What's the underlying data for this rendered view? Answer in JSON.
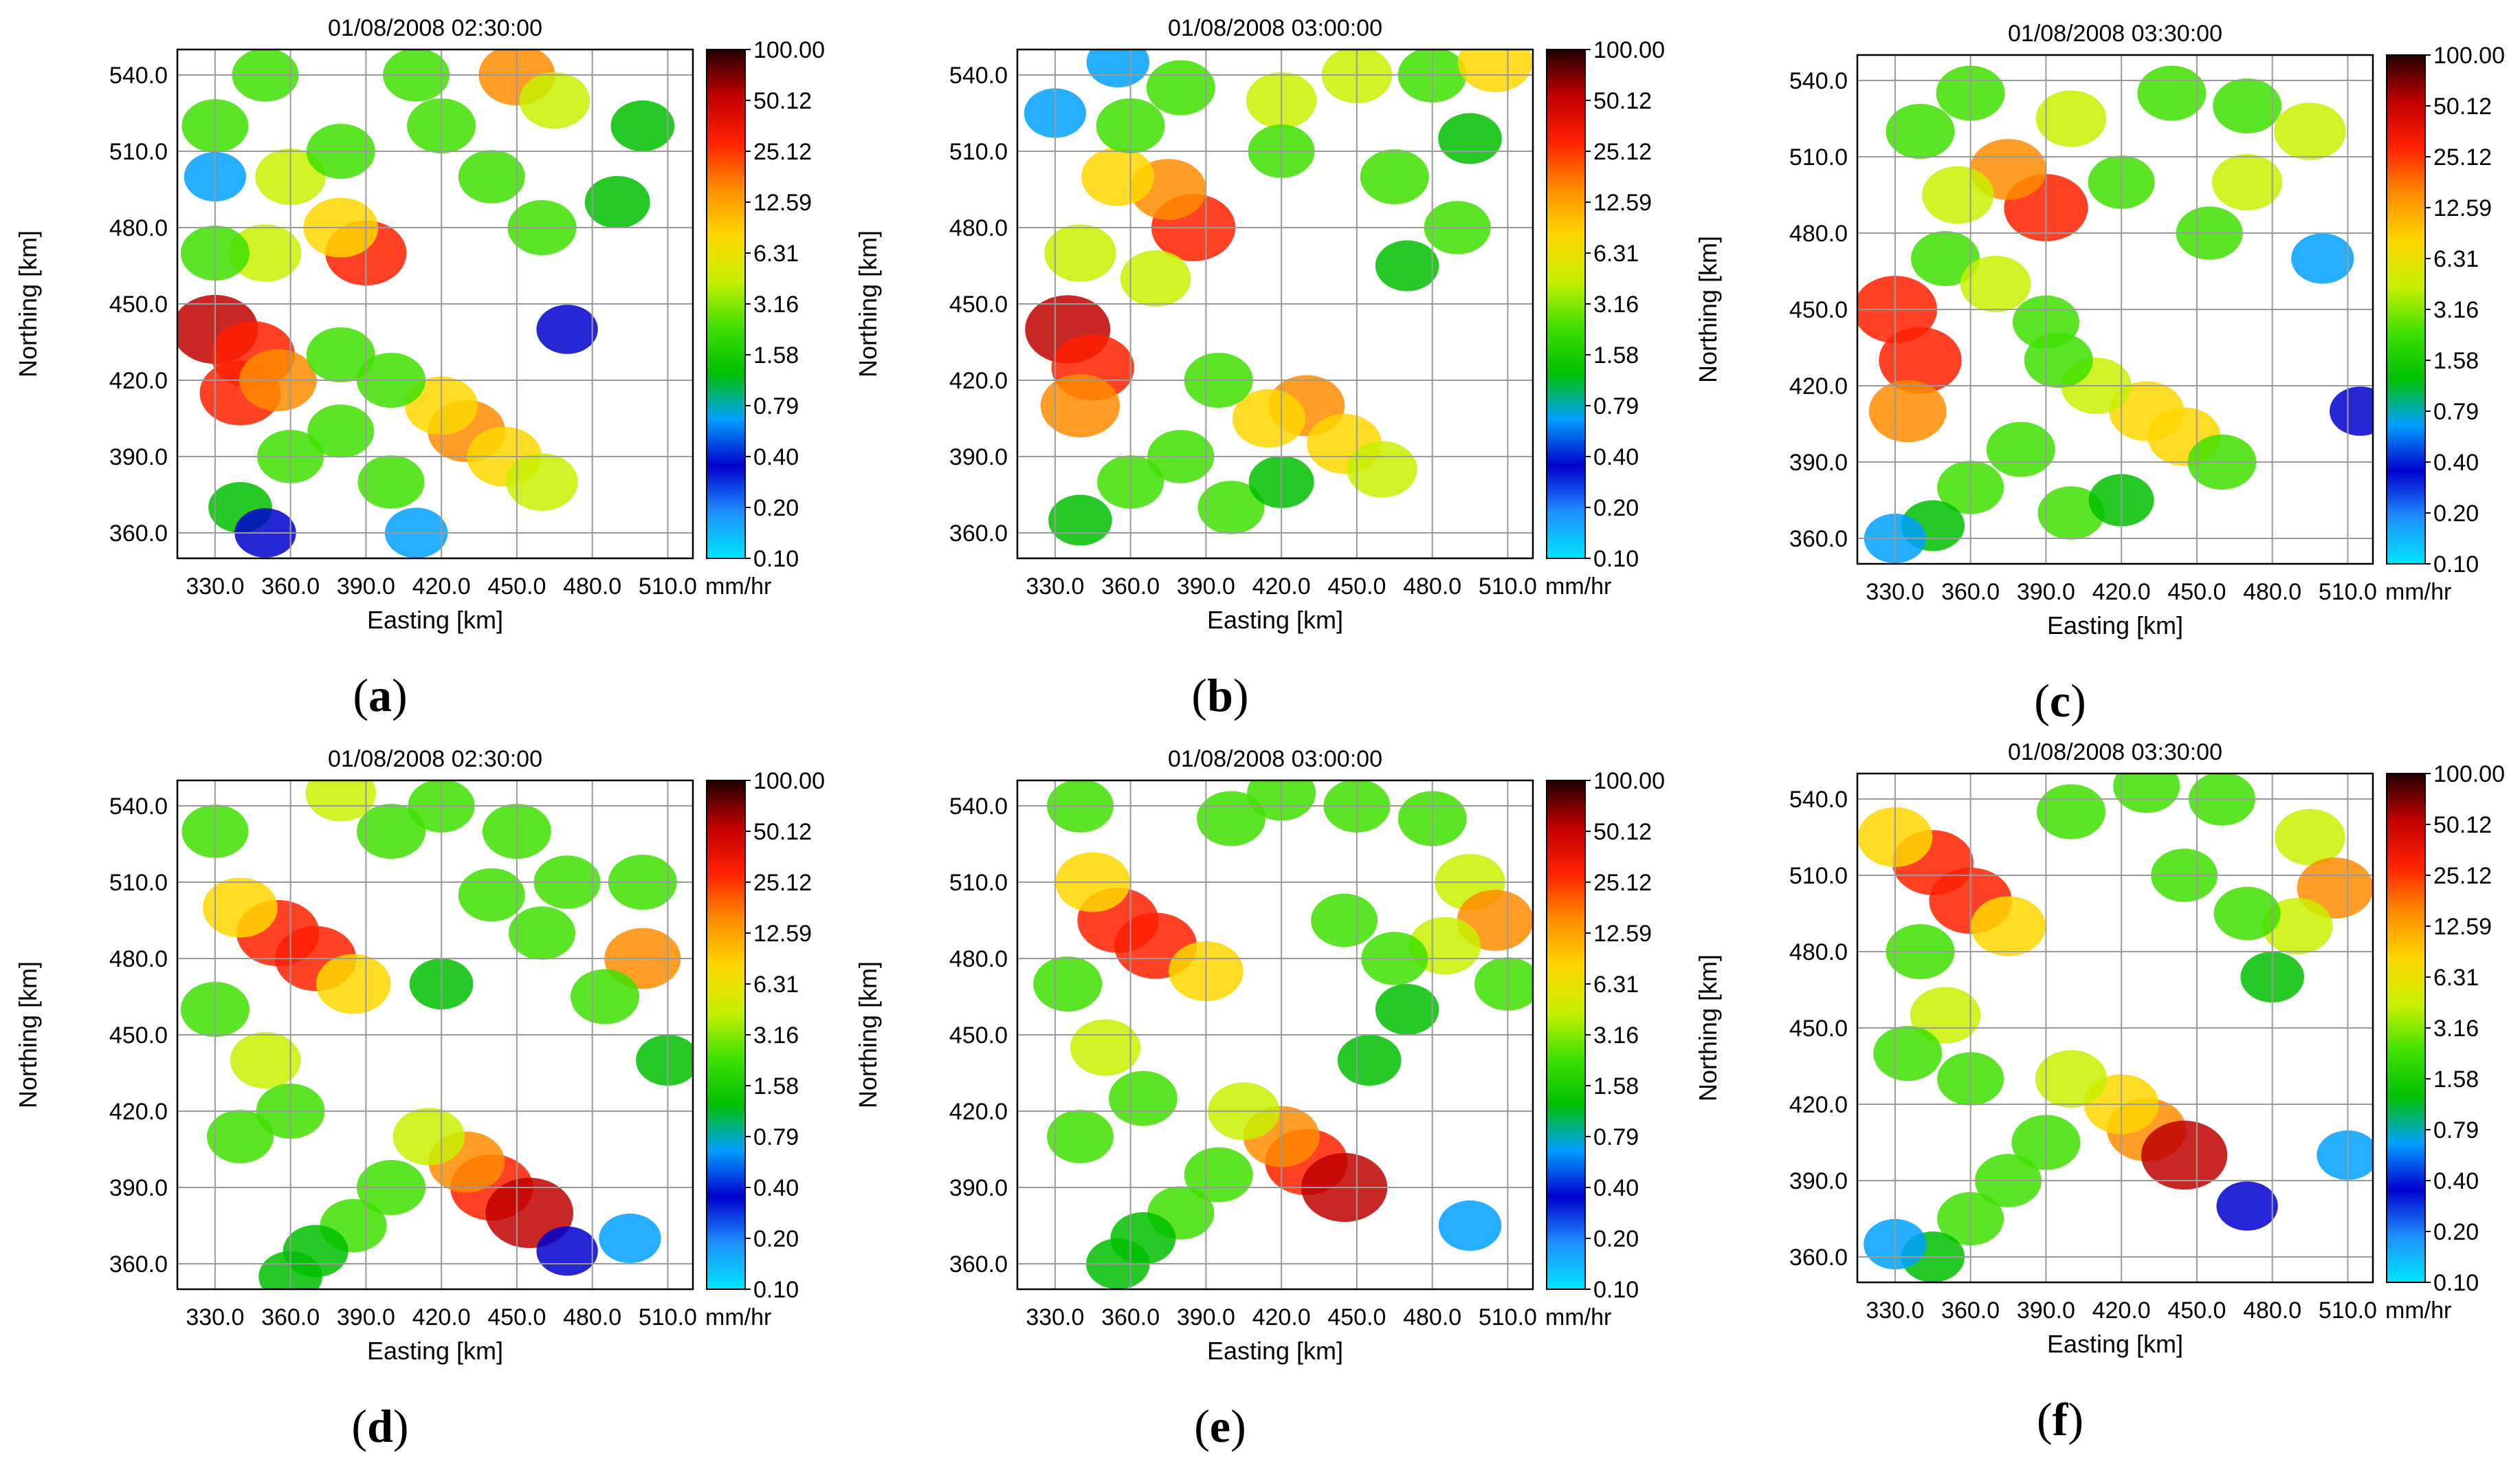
{
  "colorbar": {
    "ticks": [
      "100.00",
      "50.12",
      "25.12",
      "12.59",
      "6.31",
      "3.16",
      "1.58",
      "0.79",
      "0.40",
      "0.20",
      "0.10"
    ],
    "unit": "mm/hr",
    "colors": [
      "#00e5ff",
      "#1e90ff",
      "#0000cd",
      "#00a0ff",
      "#00c000",
      "#40e000",
      "#c8f000",
      "#ffd700",
      "#ff8c00",
      "#ff2000",
      "#c00000",
      "#200000"
    ]
  },
  "chart_data": [
    {
      "type": "heatmap",
      "panel": "(a)",
      "title": "01/08/2008 02:30:00",
      "xlabel": "Easting [km]",
      "ylabel": "Northing [km]",
      "xticks": [
        "330.0",
        "360.0",
        "390.0",
        "420.0",
        "450.0",
        "480.0",
        "510.0"
      ],
      "yticks": [
        "540.0",
        "510.0",
        "480.0",
        "450.0",
        "420.0",
        "390.0",
        "360.0"
      ],
      "xlim": [
        315,
        520
      ],
      "ylim": [
        350,
        550
      ],
      "value_range": [
        0.1,
        100
      ],
      "grid": true,
      "cells": [
        [
          330,
          440,
          40
        ],
        [
          345,
          430,
          30
        ],
        [
          340,
          415,
          20
        ],
        [
          355,
          420,
          12
        ],
        [
          390,
          470,
          20
        ],
        [
          380,
          480,
          8
        ],
        [
          350,
          470,
          5
        ],
        [
          330,
          470,
          3
        ],
        [
          360,
          500,
          4
        ],
        [
          380,
          510,
          3
        ],
        [
          420,
          520,
          3
        ],
        [
          450,
          540,
          10
        ],
        [
          465,
          530,
          4
        ],
        [
          410,
          540,
          2
        ],
        [
          350,
          540,
          2
        ],
        [
          330,
          520,
          2
        ],
        [
          440,
          500,
          2
        ],
        [
          460,
          480,
          3
        ],
        [
          490,
          490,
          1.5
        ],
        [
          430,
          400,
          12
        ],
        [
          445,
          390,
          8
        ],
        [
          460,
          380,
          5
        ],
        [
          420,
          410,
          6
        ],
        [
          400,
          420,
          3
        ],
        [
          380,
          400,
          2
        ],
        [
          360,
          390,
          2
        ],
        [
          340,
          370,
          1
        ],
        [
          400,
          380,
          2
        ],
        [
          380,
          430,
          3
        ],
        [
          410,
          360,
          0.8
        ],
        [
          470,
          440,
          0.5
        ],
        [
          500,
          520,
          1
        ],
        [
          330,
          500,
          0.6
        ],
        [
          350,
          360,
          0.5
        ]
      ]
    },
    {
      "type": "heatmap",
      "panel": "(b)",
      "title": "01/08/2008 03:00:00",
      "xlabel": "Easting [km]",
      "ylabel": "Northing [km]",
      "xticks": [
        "330.0",
        "360.0",
        "390.0",
        "420.0",
        "450.0",
        "480.0",
        "510.0"
      ],
      "yticks": [
        "540.0",
        "510.0",
        "480.0",
        "450.0",
        "420.0",
        "390.0",
        "360.0"
      ],
      "xlim": [
        315,
        520
      ],
      "ylim": [
        350,
        550
      ],
      "value_range": [
        0.1,
        100
      ],
      "grid": true,
      "cells": [
        [
          335,
          440,
          35
        ],
        [
          345,
          425,
          25
        ],
        [
          340,
          410,
          15
        ],
        [
          385,
          480,
          30
        ],
        [
          375,
          495,
          10
        ],
        [
          355,
          500,
          6
        ],
        [
          340,
          470,
          5
        ],
        [
          370,
          460,
          4
        ],
        [
          360,
          520,
          3
        ],
        [
          380,
          535,
          3
        ],
        [
          420,
          530,
          4
        ],
        [
          450,
          540,
          4
        ],
        [
          480,
          540,
          3
        ],
        [
          505,
          545,
          8
        ],
        [
          465,
          500,
          3
        ],
        [
          490,
          480,
          2
        ],
        [
          420,
          510,
          2
        ],
        [
          430,
          410,
          10
        ],
        [
          445,
          395,
          8
        ],
        [
          460,
          385,
          4
        ],
        [
          415,
          405,
          6
        ],
        [
          395,
          420,
          3
        ],
        [
          380,
          390,
          2
        ],
        [
          360,
          380,
          2
        ],
        [
          340,
          365,
          1
        ],
        [
          400,
          370,
          2
        ],
        [
          420,
          380,
          1.5
        ],
        [
          470,
          465,
          1
        ],
        [
          495,
          515,
          1
        ],
        [
          330,
          525,
          0.6
        ],
        [
          355,
          545,
          0.8
        ]
      ]
    },
    {
      "type": "heatmap",
      "panel": "(c)",
      "title": "01/08/2008 03:30:00",
      "xlabel": "Easting [km]",
      "ylabel": "Northing [km]",
      "xticks": [
        "330.0",
        "360.0",
        "390.0",
        "420.0",
        "450.0",
        "480.0",
        "510.0"
      ],
      "yticks": [
        "540.0",
        "510.0",
        "480.0",
        "450.0",
        "420.0",
        "390.0",
        "360.0"
      ],
      "xlim": [
        315,
        520
      ],
      "ylim": [
        350,
        550
      ],
      "value_range": [
        0.1,
        100
      ],
      "grid": true,
      "cells": [
        [
          330,
          450,
          30
        ],
        [
          340,
          430,
          25
        ],
        [
          335,
          410,
          12
        ],
        [
          390,
          490,
          30
        ],
        [
          375,
          505,
          10
        ],
        [
          355,
          495,
          5
        ],
        [
          350,
          470,
          3
        ],
        [
          370,
          460,
          4
        ],
        [
          340,
          520,
          3
        ],
        [
          360,
          535,
          3
        ],
        [
          400,
          525,
          4
        ],
        [
          440,
          535,
          3
        ],
        [
          470,
          530,
          3
        ],
        [
          495,
          520,
          5
        ],
        [
          470,
          500,
          4
        ],
        [
          455,
          480,
          2
        ],
        [
          420,
          500,
          2
        ],
        [
          430,
          410,
          8
        ],
        [
          445,
          400,
          6
        ],
        [
          460,
          390,
          3
        ],
        [
          410,
          420,
          4
        ],
        [
          395,
          430,
          3
        ],
        [
          380,
          395,
          3
        ],
        [
          360,
          380,
          2
        ],
        [
          345,
          365,
          1
        ],
        [
          400,
          370,
          2
        ],
        [
          420,
          375,
          1.5
        ],
        [
          390,
          445,
          2
        ],
        [
          500,
          470,
          0.8
        ],
        [
          515,
          410,
          0.5
        ],
        [
          330,
          360,
          0.6
        ]
      ]
    },
    {
      "type": "heatmap",
      "panel": "(d)",
      "title": "01/08/2008 02:30:00",
      "xlabel": "Easting [km]",
      "ylabel": "Northing [km]",
      "xticks": [
        "330.0",
        "360.0",
        "390.0",
        "420.0",
        "450.0",
        "480.0",
        "510.0"
      ],
      "yticks": [
        "540.0",
        "510.0",
        "480.0",
        "450.0",
        "420.0",
        "390.0",
        "360.0"
      ],
      "xlim": [
        315,
        520
      ],
      "ylim": [
        350,
        550
      ],
      "value_range": [
        0.1,
        100
      ],
      "grid": true,
      "cells": [
        [
          355,
          490,
          25
        ],
        [
          370,
          480,
          20
        ],
        [
          340,
          500,
          8
        ],
        [
          385,
          470,
          8
        ],
        [
          330,
          460,
          3
        ],
        [
          350,
          440,
          4
        ],
        [
          360,
          420,
          3
        ],
        [
          340,
          410,
          2
        ],
        [
          440,
          390,
          25
        ],
        [
          455,
          380,
          50
        ],
        [
          430,
          400,
          10
        ],
        [
          415,
          410,
          5
        ],
        [
          400,
          390,
          3
        ],
        [
          385,
          375,
          2
        ],
        [
          370,
          365,
          1.5
        ],
        [
          360,
          355,
          1
        ],
        [
          400,
          530,
          3
        ],
        [
          380,
          545,
          4
        ],
        [
          420,
          540,
          2
        ],
        [
          450,
          530,
          3
        ],
        [
          470,
          510,
          2
        ],
        [
          500,
          510,
          3
        ],
        [
          500,
          480,
          10
        ],
        [
          485,
          465,
          3
        ],
        [
          460,
          490,
          2
        ],
        [
          440,
          505,
          2
        ],
        [
          510,
          440,
          1
        ],
        [
          420,
          470,
          1
        ],
        [
          495,
          370,
          0.6
        ],
        [
          470,
          365,
          0.5
        ],
        [
          330,
          530,
          2
        ]
      ]
    },
    {
      "type": "heatmap",
      "panel": "(e)",
      "title": "01/08/2008 03:00:00",
      "xlabel": "Easting [km]",
      "ylabel": "Northing [km]",
      "xticks": [
        "330.0",
        "360.0",
        "390.0",
        "420.0",
        "450.0",
        "480.0",
        "510.0"
      ],
      "yticks": [
        "540.0",
        "510.0",
        "480.0",
        "450.0",
        "420.0",
        "390.0",
        "360.0"
      ],
      "xlim": [
        315,
        520
      ],
      "ylim": [
        350,
        550
      ],
      "value_range": [
        0.1,
        100
      ],
      "grid": true,
      "cells": [
        [
          355,
          495,
          20
        ],
        [
          370,
          485,
          25
        ],
        [
          345,
          510,
          8
        ],
        [
          390,
          475,
          8
        ],
        [
          335,
          470,
          3
        ],
        [
          350,
          445,
          4
        ],
        [
          365,
          425,
          3
        ],
        [
          340,
          410,
          2
        ],
        [
          430,
          400,
          25
        ],
        [
          445,
          390,
          40
        ],
        [
          420,
          410,
          10
        ],
        [
          405,
          420,
          5
        ],
        [
          395,
          395,
          3
        ],
        [
          380,
          380,
          2
        ],
        [
          365,
          370,
          1.5
        ],
        [
          355,
          360,
          1
        ],
        [
          400,
          535,
          3
        ],
        [
          420,
          545,
          3
        ],
        [
          450,
          540,
          2
        ],
        [
          480,
          535,
          3
        ],
        [
          495,
          510,
          4
        ],
        [
          505,
          495,
          10
        ],
        [
          485,
          485,
          5
        ],
        [
          465,
          480,
          2
        ],
        [
          445,
          495,
          2
        ],
        [
          510,
          470,
          2
        ],
        [
          470,
          460,
          1
        ],
        [
          495,
          375,
          0.8
        ],
        [
          455,
          440,
          1
        ],
        [
          340,
          540,
          2
        ]
      ]
    },
    {
      "type": "heatmap",
      "panel": "(f)",
      "title": "01/08/2008 03:30:00",
      "xlabel": "Easting [km]",
      "ylabel": "Northing [km]",
      "xticks": [
        "330.0",
        "360.0",
        "390.0",
        "420.0",
        "450.0",
        "480.0",
        "510.0"
      ],
      "yticks": [
        "540.0",
        "510.0",
        "480.0",
        "450.0",
        "420.0",
        "390.0",
        "360.0"
      ],
      "xlim": [
        315,
        520
      ],
      "ylim": [
        350,
        550
      ],
      "value_range": [
        0.1,
        100
      ],
      "grid": true,
      "cells": [
        [
          345,
          515,
          20
        ],
        [
          360,
          500,
          25
        ],
        [
          330,
          525,
          8
        ],
        [
          375,
          490,
          8
        ],
        [
          340,
          480,
          3
        ],
        [
          350,
          455,
          4
        ],
        [
          335,
          440,
          3
        ],
        [
          360,
          430,
          2
        ],
        [
          430,
          410,
          15
        ],
        [
          445,
          400,
          40
        ],
        [
          420,
          420,
          8
        ],
        [
          400,
          430,
          5
        ],
        [
          390,
          405,
          3
        ],
        [
          375,
          390,
          2
        ],
        [
          360,
          375,
          2
        ],
        [
          345,
          360,
          1
        ],
        [
          400,
          535,
          3
        ],
        [
          430,
          545,
          2
        ],
        [
          460,
          540,
          2
        ],
        [
          495,
          525,
          4
        ],
        [
          505,
          505,
          10
        ],
        [
          490,
          490,
          4
        ],
        [
          470,
          495,
          2
        ],
        [
          445,
          510,
          2
        ],
        [
          480,
          470,
          1
        ],
        [
          510,
          400,
          0.6
        ],
        [
          470,
          380,
          0.5
        ],
        [
          330,
          365,
          0.8
        ]
      ]
    }
  ],
  "panel_labels": [
    "(a)",
    "(b)",
    "(c)",
    "(d)",
    "(e)",
    "(f)"
  ]
}
